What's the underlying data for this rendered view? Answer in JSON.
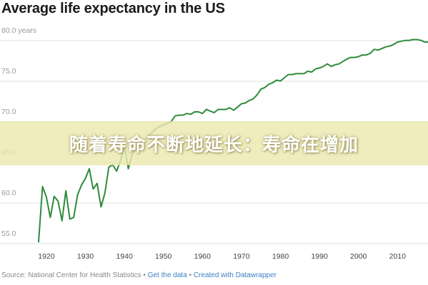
{
  "chart_data": {
    "type": "line",
    "title": "Average life expectancy in the US",
    "xlabel": "",
    "ylabel": "",
    "xlim": [
      1917,
      2020
    ],
    "ylim": [
      53.5,
      80.8
    ],
    "y_ticks": [
      {
        "value": 80,
        "label": "80.0 years"
      },
      {
        "value": 75,
        "label": "75.0"
      },
      {
        "value": 70,
        "label": "70.0"
      },
      {
        "value": 65,
        "label": "65.0"
      },
      {
        "value": 60,
        "label": "60.0"
      },
      {
        "value": 55,
        "label": "55.0"
      }
    ],
    "x_ticks": [
      "1920",
      "1930",
      "1940",
      "1950",
      "1960",
      "1970",
      "1980",
      "1990",
      "2000",
      "2010"
    ],
    "grid": true,
    "line_color": "#2e8b3a",
    "series": [
      {
        "x": [
          1918,
          1919,
          1920,
          1921,
          1922,
          1923,
          1924,
          1925,
          1926,
          1927,
          1928,
          1929,
          1930,
          1931,
          1932,
          1933,
          1934,
          1935,
          1936,
          1937,
          1938,
          1939,
          1940,
          1941,
          1942,
          1943,
          1944,
          1945,
          1946,
          1947,
          1948,
          1949,
          1950,
          1951,
          1952,
          1953,
          1954,
          1955,
          1956,
          1957,
          1958,
          1959,
          1960,
          1961,
          1962,
          1963,
          1964,
          1965,
          1966,
          1967,
          1968,
          1969,
          1970,
          1971,
          1972,
          1973,
          1974,
          1975,
          1976,
          1977,
          1978,
          1979,
          1980,
          1981,
          1982,
          1983,
          1984,
          1985,
          1986,
          1987,
          1988,
          1989,
          1990,
          1991,
          1992,
          1993,
          1994,
          1995,
          1996,
          1997,
          1998,
          1999,
          2000,
          2001,
          2002,
          2003,
          2004,
          2005,
          2006,
          2007,
          2008,
          2009,
          2010,
          2011,
          2012,
          2013,
          2014,
          2015,
          2016,
          2017,
          2018
        ],
        "y": [
          54.0,
          60.8,
          59.5,
          57.0,
          59.6,
          59.0,
          56.6,
          60.3,
          56.8,
          57.0,
          59.8,
          61.0,
          61.8,
          63.0,
          60.5,
          61.2,
          58.3,
          60.0,
          63.2,
          63.5,
          62.7,
          64.0,
          65.8,
          63.0,
          64.8,
          65.5,
          66.0,
          66.4,
          67.0,
          67.4,
          67.9,
          68.2,
          68.4,
          68.6,
          68.8,
          69.5,
          69.6,
          69.6,
          69.8,
          69.7,
          70.0,
          70.0,
          69.8,
          70.3,
          70.1,
          69.9,
          70.3,
          70.3,
          70.3,
          70.5,
          70.2,
          70.6,
          71.0,
          71.1,
          71.4,
          71.6,
          72.1,
          72.8,
          73.0,
          73.4,
          73.6,
          73.9,
          73.8,
          74.2,
          74.6,
          74.6,
          74.7,
          74.7,
          74.7,
          75.0,
          74.9,
          75.3,
          75.4,
          75.6,
          75.9,
          75.6,
          75.8,
          75.9,
          76.2,
          76.5,
          76.7,
          76.7,
          76.8,
          77.0,
          77.0,
          77.2,
          77.7,
          77.6,
          77.8,
          78.0,
          78.1,
          78.3,
          78.6,
          78.7,
          78.8,
          78.8,
          78.9,
          78.9,
          78.8,
          78.6,
          78.6
        ]
      }
    ]
  },
  "banner": {
    "text": "随着寿命不断地延长：寿命在增加"
  },
  "footer": {
    "source": "Source: National Center for Health Statistics",
    "sep1": " • ",
    "get_data": "Get the data",
    "sep2": " • ",
    "created": "Created with Datawrapper"
  }
}
